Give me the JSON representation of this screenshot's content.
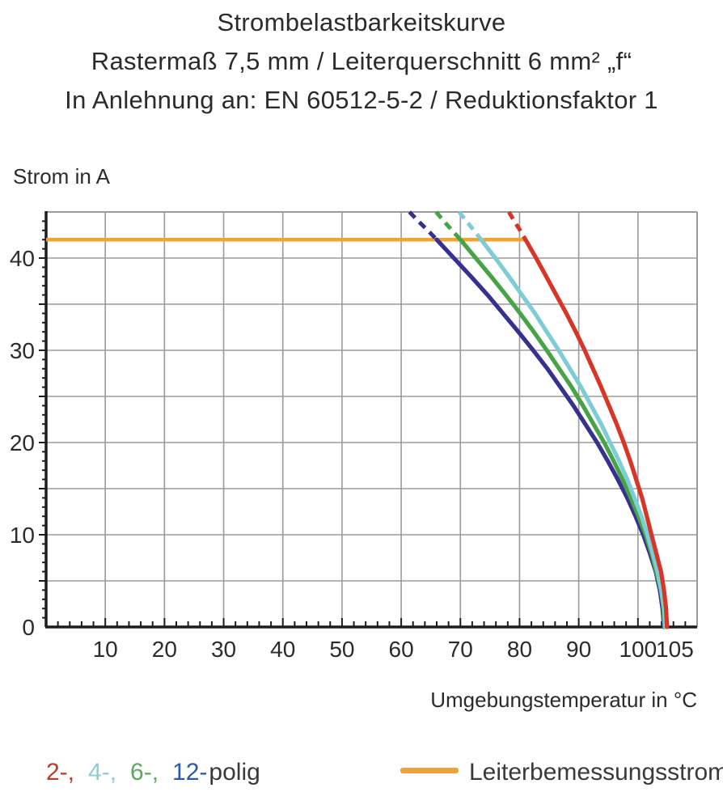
{
  "title": {
    "line1": "Strombelastbarkeitskurve",
    "line2": "Rastermaß 7,5 mm / Leiterquerschnitt 6 mm² „f“",
    "line3": "In Anlehnung an: EN 60512-5-2 / Reduktionsfaktor 1"
  },
  "chart_data": {
    "type": "line",
    "title": "Strombelastbarkeitskurve",
    "xlabel": "Umgebungstemperatur in °C",
    "ylabel": "Strom in A",
    "xlim": [
      0,
      110
    ],
    "ylim": [
      0,
      45
    ],
    "xticks": [
      10,
      20,
      30,
      40,
      50,
      60,
      70,
      80,
      90,
      100,
      105
    ],
    "yticks": [
      0,
      10,
      20,
      30,
      40
    ],
    "x_grid_step": 10,
    "y_grid_step": 5,
    "x_minor_step": 2,
    "y_minor_step": 1,
    "grid_on": true,
    "grid_color": "#9b9b9b",
    "axis_color": "#1d1d1d",
    "legend_position": "bottom",
    "rated_current": {
      "label": "Leiterbemessungsstrom",
      "value_A": 42,
      "x_start_C": 0,
      "x_end_C": 81,
      "color": "#f2a432"
    },
    "series": [
      {
        "name": "12-polig",
        "color": "#38308f",
        "dashed_above_rated": [
          [
            61.4,
            45
          ],
          [
            62.9,
            44
          ],
          [
            64.5,
            43
          ],
          [
            66,
            42
          ]
        ],
        "solid": [
          [
            66,
            42
          ],
          [
            68.9,
            40
          ],
          [
            71.8,
            38
          ],
          [
            74.6,
            36
          ],
          [
            77.2,
            34
          ],
          [
            79.8,
            32
          ],
          [
            82.3,
            30
          ],
          [
            84.7,
            28
          ],
          [
            86.9,
            26
          ],
          [
            89.1,
            24
          ],
          [
            91.1,
            22
          ],
          [
            93.1,
            20
          ],
          [
            94.9,
            18
          ],
          [
            96.6,
            16
          ],
          [
            98.2,
            14
          ],
          [
            99.6,
            12
          ],
          [
            100.9,
            10
          ],
          [
            102,
            8
          ],
          [
            103,
            6
          ],
          [
            103.7,
            4
          ],
          [
            104.15,
            2
          ],
          [
            104.4,
            0
          ]
        ]
      },
      {
        "name": "6-polig",
        "color": "#46a447",
        "dashed_above_rated": [
          [
            65.9,
            45
          ],
          [
            67.2,
            44
          ],
          [
            68.6,
            43
          ],
          [
            70,
            42
          ]
        ],
        "solid": [
          [
            70,
            42
          ],
          [
            72.6,
            40
          ],
          [
            75.2,
            38
          ],
          [
            77.7,
            36
          ],
          [
            80.1,
            34
          ],
          [
            82.4,
            32
          ],
          [
            84.6,
            30
          ],
          [
            86.7,
            28
          ],
          [
            88.8,
            26
          ],
          [
            90.7,
            24
          ],
          [
            92.5,
            22
          ],
          [
            94.3,
            20
          ],
          [
            95.9,
            18
          ],
          [
            97.4,
            16
          ],
          [
            98.8,
            14
          ],
          [
            100.1,
            12
          ],
          [
            101.3,
            10
          ],
          [
            102.3,
            8
          ],
          [
            103.1,
            6
          ],
          [
            103.9,
            4
          ],
          [
            104.3,
            2
          ],
          [
            104.5,
            0
          ]
        ]
      },
      {
        "name": "4-polig",
        "color": "#7ecdd5",
        "dashed_above_rated": [
          [
            69.8,
            45
          ],
          [
            71,
            44
          ],
          [
            72.3,
            43
          ],
          [
            73.5,
            42
          ]
        ],
        "solid": [
          [
            73.5,
            42
          ],
          [
            75.9,
            40
          ],
          [
            78.2,
            38
          ],
          [
            80.4,
            36
          ],
          [
            82.6,
            34
          ],
          [
            84.6,
            32
          ],
          [
            86.6,
            30
          ],
          [
            88.5,
            28
          ],
          [
            90.4,
            26
          ],
          [
            92.1,
            24
          ],
          [
            93.8,
            22
          ],
          [
            95.3,
            20
          ],
          [
            96.8,
            18
          ],
          [
            98.2,
            16
          ],
          [
            99.4,
            14
          ],
          [
            100.6,
            12
          ],
          [
            101.6,
            10
          ],
          [
            102.5,
            8
          ],
          [
            103.3,
            6
          ],
          [
            103.9,
            4
          ],
          [
            104.45,
            2
          ],
          [
            104.6,
            0
          ]
        ]
      },
      {
        "name": "2-polig",
        "color": "#d63527",
        "dashed_above_rated": [
          [
            78.2,
            45
          ],
          [
            79.1,
            44
          ],
          [
            80.1,
            43
          ],
          [
            81,
            42
          ]
        ],
        "solid": [
          [
            81,
            42
          ],
          [
            82.8,
            40
          ],
          [
            84.5,
            38
          ],
          [
            86.2,
            36
          ],
          [
            87.9,
            34
          ],
          [
            89.5,
            32
          ],
          [
            91,
            30
          ],
          [
            92.4,
            28
          ],
          [
            93.8,
            26
          ],
          [
            95.1,
            24
          ],
          [
            96.4,
            22
          ],
          [
            97.6,
            20
          ],
          [
            98.7,
            18
          ],
          [
            99.7,
            16
          ],
          [
            100.7,
            14
          ],
          [
            101.5,
            12
          ],
          [
            102.3,
            10
          ],
          [
            103.1,
            8
          ],
          [
            103.9,
            6
          ],
          [
            104.4,
            4
          ],
          [
            104.75,
            2
          ],
          [
            104.9,
            0
          ]
        ]
      }
    ]
  },
  "legend": {
    "poles": [
      {
        "label": "2-,",
        "color": "#c2392c"
      },
      {
        "label": "4-,",
        "color": "#8cccd2"
      },
      {
        "label": "6-,",
        "color": "#5fa75c"
      },
      {
        "label": "12-",
        "color": "#2d58a7"
      },
      {
        "label": "polig",
        "color": "#3a3a3a"
      }
    ],
    "rated": {
      "label": "Leiterbemessungsstrom",
      "color": "#efa23b"
    }
  }
}
